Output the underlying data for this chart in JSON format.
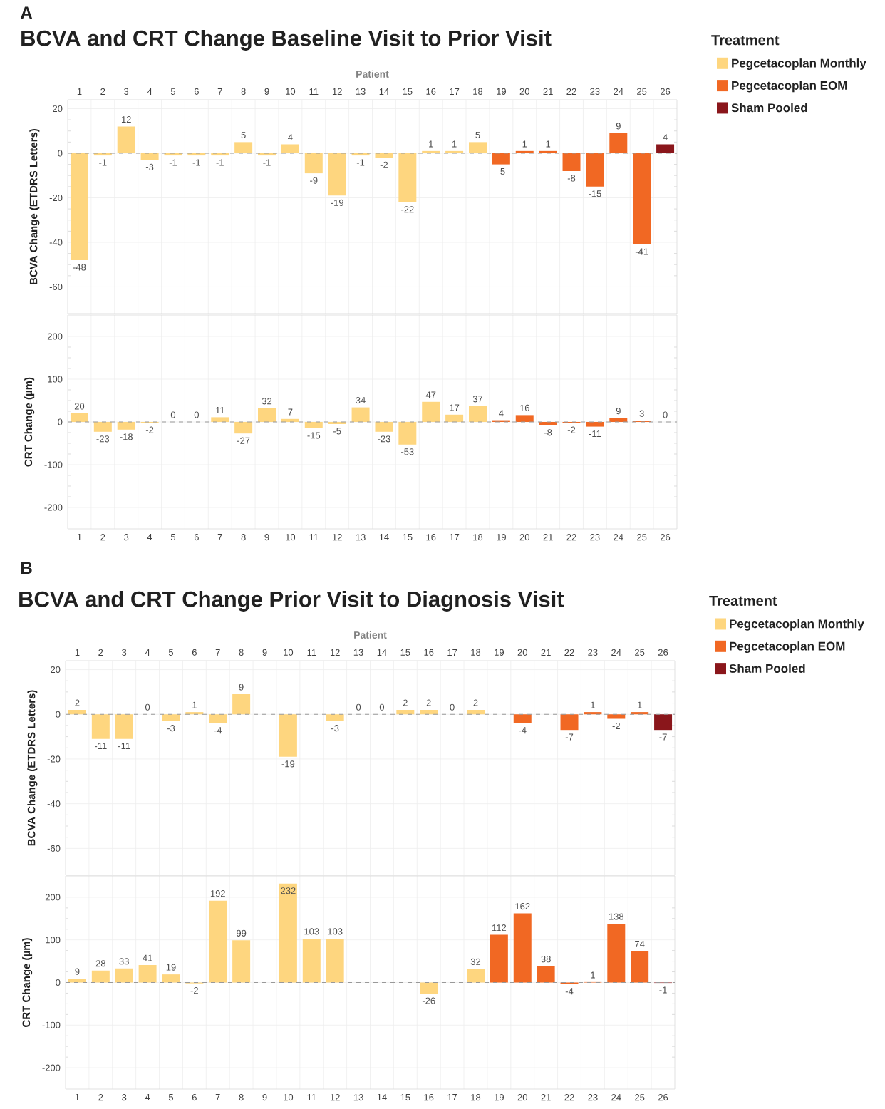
{
  "chart_data": [
    {
      "type": "bar",
      "title": "BCVA and CRT Change Baseline Visit to Prior Visit",
      "xlabel": "Patient",
      "ylabel": "BCVA Change (ETDRS Letters)",
      "annotations": [
        "A"
      ],
      "categories": [
        "1",
        "2",
        "3",
        "4",
        "5",
        "6",
        "7",
        "8",
        "9",
        "10",
        "11",
        "12",
        "13",
        "14",
        "15",
        "16",
        "17",
        "18",
        "19",
        "20",
        "21",
        "22",
        "23",
        "24",
        "25",
        "26"
      ],
      "series": [
        {
          "name": "Pegcetacoplan Monthly",
          "color": "#fed67f",
          "values": [
            -48,
            -1,
            12,
            -3,
            -1,
            -1,
            -1,
            5,
            -1,
            4,
            -9,
            -19,
            -1,
            -2,
            -22,
            1,
            1,
            5,
            null,
            null,
            null,
            null,
            null,
            null,
            null,
            null
          ]
        },
        {
          "name": "Pegcetacoplan EOM",
          "color": "#f16823",
          "values": [
            null,
            null,
            null,
            null,
            null,
            null,
            null,
            null,
            null,
            null,
            null,
            null,
            null,
            null,
            null,
            null,
            null,
            null,
            -5,
            1,
            1,
            -8,
            -15,
            9,
            -41,
            null
          ]
        },
        {
          "name": "Sham Pooled",
          "color": "#8a161b",
          "values": [
            null,
            null,
            null,
            null,
            null,
            null,
            null,
            null,
            null,
            null,
            null,
            null,
            null,
            null,
            null,
            null,
            null,
            null,
            null,
            null,
            null,
            null,
            null,
            null,
            null,
            4
          ]
        }
      ],
      "data_labels": true,
      "ylim": [
        -72,
        24
      ],
      "yticks": [
        -60,
        -40,
        -20,
        0,
        20
      ],
      "grid": true,
      "legend": "right",
      "legend_title": "Treatment",
      "ref_lines": [
        {
          "axis": "y",
          "value": 0,
          "line_style": "dashed",
          "color": "#999999"
        }
      ]
    },
    {
      "type": "bar",
      "ylabel": "CRT Change (µm)",
      "categories": [
        "1",
        "2",
        "3",
        "4",
        "5",
        "6",
        "7",
        "8",
        "9",
        "10",
        "11",
        "12",
        "13",
        "14",
        "15",
        "16",
        "17",
        "18",
        "19",
        "20",
        "21",
        "22",
        "23",
        "24",
        "25",
        "26"
      ],
      "series": [
        {
          "color": "#fed67f",
          "values": [
            20,
            -23,
            -18,
            -2,
            0,
            0,
            11,
            -27,
            32,
            7,
            -15,
            -5,
            34,
            -23,
            -53,
            47,
            17,
            37,
            null,
            null,
            null,
            null,
            null,
            null,
            null,
            null
          ]
        },
        {
          "color": "#f16823",
          "values": [
            null,
            null,
            null,
            null,
            null,
            null,
            null,
            null,
            null,
            null,
            null,
            null,
            null,
            null,
            null,
            null,
            null,
            null,
            4,
            16,
            -8,
            -2,
            -11,
            9,
            3,
            null
          ]
        },
        {
          "color": "#8a161b",
          "values": [
            null,
            null,
            null,
            null,
            null,
            null,
            null,
            null,
            null,
            null,
            null,
            null,
            null,
            null,
            null,
            null,
            null,
            null,
            null,
            null,
            null,
            null,
            null,
            null,
            null,
            0
          ]
        }
      ],
      "data_labels": true,
      "ylim": [
        -250,
        250
      ],
      "yticks": [
        -200,
        -100,
        0,
        100,
        200
      ],
      "grid": true,
      "ref_lines": [
        {
          "axis": "y",
          "value": 0,
          "line_style": "dashed",
          "color": "#999999"
        }
      ]
    },
    {
      "type": "bar",
      "title": "BCVA and CRT Change Prior Visit to Diagnosis Visit",
      "xlabel": "Patient",
      "ylabel": "BCVA Change (ETDRS Letters)",
      "annotations": [
        "B"
      ],
      "categories": [
        "1",
        "2",
        "3",
        "4",
        "5",
        "6",
        "7",
        "8",
        "9",
        "10",
        "11",
        "12",
        "13",
        "14",
        "15",
        "16",
        "17",
        "18",
        "19",
        "20",
        "21",
        "22",
        "23",
        "24",
        "25",
        "26"
      ],
      "series": [
        {
          "name": "Pegcetacoplan Monthly",
          "color": "#fed67f",
          "values": [
            2,
            -11,
            -11,
            0,
            -3,
            1,
            -4,
            9,
            null,
            -19,
            null,
            -3,
            0,
            0,
            2,
            2,
            0,
            2,
            null,
            null,
            null,
            null,
            null,
            null,
            null,
            null
          ]
        },
        {
          "name": "Pegcetacoplan EOM",
          "color": "#f16823",
          "values": [
            null,
            null,
            null,
            null,
            null,
            null,
            null,
            null,
            null,
            null,
            null,
            null,
            null,
            null,
            null,
            null,
            null,
            null,
            null,
            -4,
            null,
            -7,
            1,
            -2,
            1,
            null
          ]
        },
        {
          "name": "Sham Pooled",
          "color": "#8a161b",
          "values": [
            null,
            null,
            null,
            null,
            null,
            null,
            null,
            null,
            null,
            null,
            null,
            null,
            null,
            null,
            null,
            null,
            null,
            null,
            null,
            null,
            null,
            null,
            null,
            null,
            null,
            -7
          ]
        }
      ],
      "data_labels": true,
      "ylim": [
        -72,
        24
      ],
      "yticks": [
        -60,
        -40,
        -20,
        0,
        20
      ],
      "grid": true,
      "legend": "right",
      "legend_title": "Treatment",
      "ref_lines": [
        {
          "axis": "y",
          "value": 0,
          "line_style": "dashed",
          "color": "#999999"
        }
      ]
    },
    {
      "type": "bar",
      "ylabel": "CRT Change (µm)",
      "categories": [
        "1",
        "2",
        "3",
        "4",
        "5",
        "6",
        "7",
        "8",
        "9",
        "10",
        "11",
        "12",
        "13",
        "14",
        "15",
        "16",
        "17",
        "18",
        "19",
        "20",
        "21",
        "22",
        "23",
        "24",
        "25",
        "26"
      ],
      "series": [
        {
          "color": "#fed67f",
          "values": [
            9,
            28,
            33,
            41,
            19,
            -2,
            192,
            99,
            null,
            232,
            103,
            103,
            null,
            null,
            null,
            -26,
            null,
            32,
            null,
            null,
            null,
            null,
            null,
            null,
            null,
            null
          ]
        },
        {
          "color": "#f16823",
          "values": [
            null,
            null,
            null,
            null,
            null,
            null,
            null,
            null,
            null,
            null,
            null,
            null,
            null,
            null,
            null,
            null,
            null,
            null,
            112,
            162,
            38,
            -4,
            1,
            138,
            74,
            null
          ]
        },
        {
          "color": "#8a161b",
          "values": [
            null,
            null,
            null,
            null,
            null,
            null,
            null,
            null,
            null,
            null,
            null,
            null,
            null,
            null,
            null,
            null,
            null,
            null,
            null,
            null,
            null,
            null,
            null,
            null,
            null,
            -1
          ]
        }
      ],
      "data_labels": true,
      "ylim": [
        -250,
        250
      ],
      "yticks": [
        -200,
        -100,
        0,
        100,
        200
      ],
      "grid": true,
      "ref_lines": [
        {
          "axis": "y",
          "value": 0,
          "line_style": "dashed",
          "color": "#999999"
        }
      ]
    }
  ]
}
